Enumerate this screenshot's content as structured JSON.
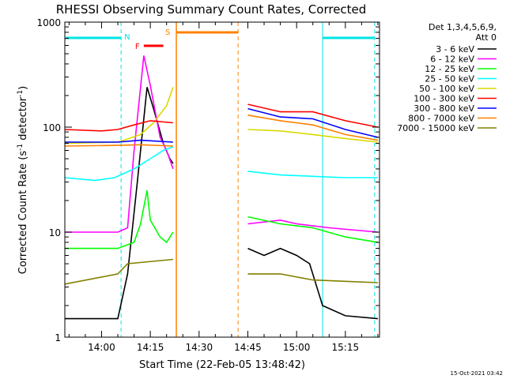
{
  "chart_data": {
    "type": "line",
    "title": "RHESSI Observing Summary Count Rates, Corrected",
    "xlabel": "Start Time (22-Feb-05 13:48:42)",
    "ylabel": "Corrected Count Rate (s⁻¹ detector⁻¹)",
    "ylabel_main": "Corrected Count Rate (s",
    "ylabel_sup1": "-1",
    "ylabel_mid": " detector",
    "ylabel_sup2": "-1",
    "ylabel_end": ")",
    "yscale": "log",
    "ylim": [
      1,
      1000
    ],
    "xlim": [
      "13:48:42",
      "15:25:30"
    ],
    "x_ticks": [
      "14:00",
      "14:15",
      "14:30",
      "14:45",
      "15:00",
      "15:15"
    ],
    "y_ticks": [
      "1",
      "10",
      "100",
      "1000"
    ],
    "legend": {
      "placement": "right",
      "header": [
        "Det 1,3,4,5,6,9,",
        "Att 0"
      ]
    },
    "timestamp": "15-Oct-2021 03:42",
    "annotations": {
      "N": "N",
      "F": "F",
      "S": "S"
    },
    "markers": {
      "night_start": "14:06",
      "night_end": "15:08",
      "night_end2": "15:24",
      "saa_start": "14:23",
      "saa_end": "14:42",
      "flare_start": "14:13",
      "flare_end": "14:19"
    },
    "colors": {
      "night": "#00e5e5",
      "saa": "#ff8000",
      "flare": "#ff0000"
    },
    "series": [
      {
        "name": "3 - 6 keV",
        "color": "#000000",
        "seg1": [
          [
            "13:48:42",
            1.5
          ],
          [
            "14:05",
            1.5
          ],
          [
            "14:08",
            4
          ],
          [
            "14:11",
            30
          ],
          [
            "14:14",
            240
          ],
          [
            "14:16",
            150
          ],
          [
            "14:19",
            70
          ],
          [
            "14:21",
            50
          ],
          [
            "14:22",
            45
          ]
        ],
        "seg2": [
          [
            "14:45",
            7
          ],
          [
            "14:50",
            6
          ],
          [
            "14:55",
            7
          ],
          [
            "15:00",
            6
          ],
          [
            "15:04",
            5
          ],
          [
            "15:08",
            2
          ],
          [
            "15:15",
            1.6
          ],
          [
            "15:25",
            1.5
          ]
        ]
      },
      {
        "name": "6 - 12 keV",
        "color": "#ff00ff",
        "seg1": [
          [
            "13:48:42",
            10
          ],
          [
            "14:05",
            10
          ],
          [
            "14:08",
            11
          ],
          [
            "14:10",
            60
          ],
          [
            "14:13",
            480
          ],
          [
            "14:15",
            250
          ],
          [
            "14:18",
            80
          ],
          [
            "14:20",
            60
          ],
          [
            "14:22",
            40
          ]
        ],
        "seg2": [
          [
            "14:45",
            12
          ],
          [
            "14:55",
            13
          ],
          [
            "15:00",
            12
          ],
          [
            "15:10",
            11
          ],
          [
            "15:25",
            10
          ]
        ]
      },
      {
        "name": "12 - 25 keV",
        "color": "#00ff00",
        "seg1": [
          [
            "13:48:42",
            7
          ],
          [
            "14:05",
            7
          ],
          [
            "14:10",
            8
          ],
          [
            "14:12",
            12
          ],
          [
            "14:14",
            25
          ],
          [
            "14:15",
            13
          ],
          [
            "14:18",
            9
          ],
          [
            "14:20",
            8
          ],
          [
            "14:22",
            10
          ]
        ],
        "seg2": [
          [
            "14:45",
            14
          ],
          [
            "14:55",
            12
          ],
          [
            "15:05",
            11
          ],
          [
            "15:15",
            9
          ],
          [
            "15:25",
            8
          ]
        ]
      },
      {
        "name": "25 - 50 keV",
        "color": "#00ffff",
        "seg1": [
          [
            "13:48:42",
            33
          ],
          [
            "13:58",
            31
          ],
          [
            "14:04",
            33
          ],
          [
            "14:10",
            40
          ],
          [
            "14:15",
            50
          ],
          [
            "14:19",
            60
          ],
          [
            "14:22",
            65
          ]
        ],
        "seg2": [
          [
            "14:45",
            38
          ],
          [
            "14:55",
            35
          ],
          [
            "15:05",
            34
          ],
          [
            "15:15",
            33
          ],
          [
            "15:25",
            33
          ]
        ]
      },
      {
        "name": "50 - 100 keV",
        "color": "#d9d900",
        "seg1": [
          [
            "13:48:42",
            70
          ],
          [
            "14:05",
            72
          ],
          [
            "14:12",
            85
          ],
          [
            "14:16",
            110
          ],
          [
            "14:20",
            160
          ],
          [
            "14:22",
            240
          ]
        ],
        "seg2": [
          [
            "14:45",
            95
          ],
          [
            "14:55",
            92
          ],
          [
            "15:05",
            85
          ],
          [
            "15:15",
            78
          ],
          [
            "15:25",
            72
          ]
        ]
      },
      {
        "name": "100 - 300 keV",
        "color": "#ff0000",
        "seg1": [
          [
            "13:48:42",
            95
          ],
          [
            "14:00",
            92
          ],
          [
            "14:05",
            95
          ],
          [
            "14:10",
            105
          ],
          [
            "14:15",
            115
          ],
          [
            "14:22",
            110
          ]
        ],
        "seg2": [
          [
            "14:45",
            165
          ],
          [
            "14:55",
            140
          ],
          [
            "15:05",
            140
          ],
          [
            "15:15",
            115
          ],
          [
            "15:25",
            100
          ]
        ]
      },
      {
        "name": "300 - 800 keV",
        "color": "#0000ff",
        "seg1": [
          [
            "13:48:42",
            72
          ],
          [
            "14:05",
            72
          ],
          [
            "14:12",
            75
          ],
          [
            "14:22",
            72
          ]
        ],
        "seg2": [
          [
            "14:45",
            150
          ],
          [
            "14:55",
            125
          ],
          [
            "15:05",
            120
          ],
          [
            "15:15",
            95
          ],
          [
            "15:25",
            80
          ]
        ]
      },
      {
        "name": "800 - 7000 keV",
        "color": "#ff8000",
        "seg1": [
          [
            "13:48:42",
            66
          ],
          [
            "14:05",
            67
          ],
          [
            "14:12",
            68
          ],
          [
            "14:22",
            66
          ]
        ],
        "seg2": [
          [
            "14:45",
            130
          ],
          [
            "14:55",
            115
          ],
          [
            "15:05",
            105
          ],
          [
            "15:15",
            85
          ],
          [
            "15:25",
            75
          ]
        ]
      },
      {
        "name": "7000 - 15000 keV",
        "color": "#808000",
        "seg1": [
          [
            "13:48:42",
            3.2
          ],
          [
            "14:05",
            4
          ],
          [
            "14:08",
            5
          ],
          [
            "14:22",
            5.5
          ]
        ],
        "seg2": [
          [
            "14:45",
            4
          ],
          [
            "14:55",
            4
          ],
          [
            "15:05",
            3.5
          ],
          [
            "15:15",
            3.4
          ],
          [
            "15:25",
            3.3
          ]
        ]
      }
    ]
  }
}
